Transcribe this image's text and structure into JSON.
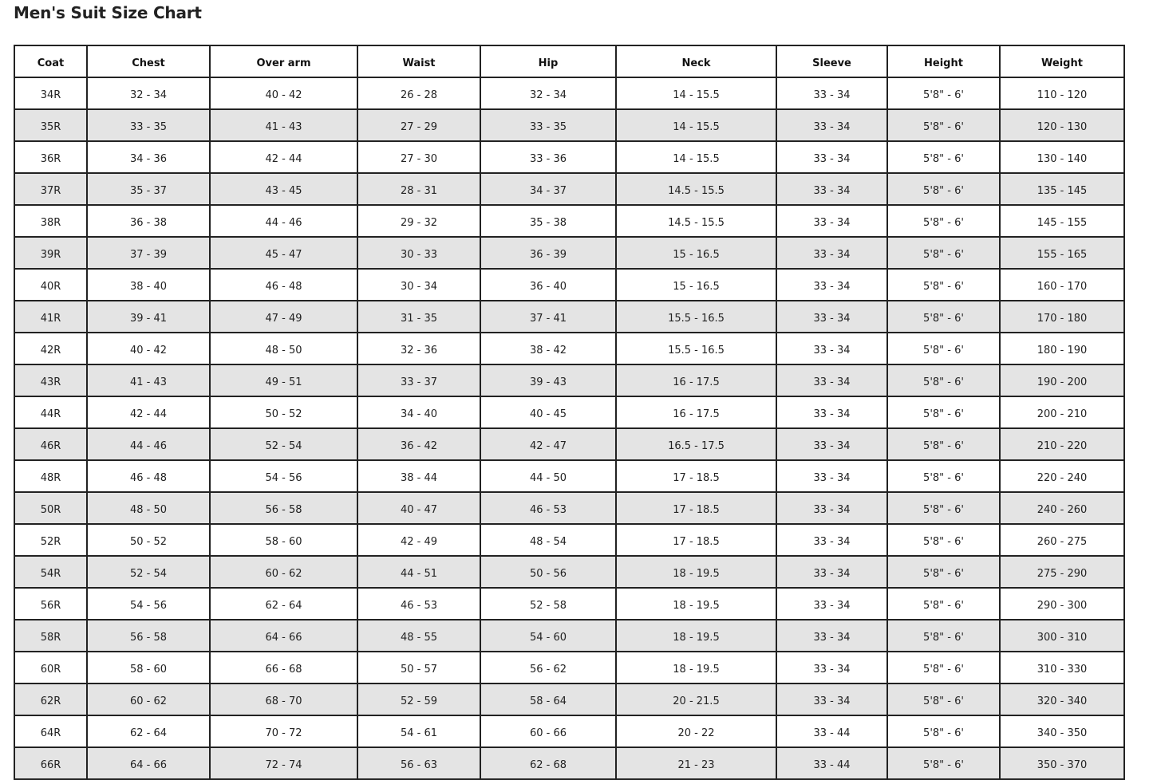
{
  "title": "Men's Suit Size Chart",
  "table": {
    "headers": [
      "Coat",
      "Chest",
      "Over arm",
      "Waist",
      "Hip",
      "Neck",
      "Sleeve",
      "Height",
      "Weight"
    ],
    "rows": [
      [
        "34R",
        "32 - 34",
        "40 - 42",
        "26 - 28",
        "32 - 34",
        "14 - 15.5",
        "33 - 34",
        "5'8\" - 6'",
        "110 - 120"
      ],
      [
        "35R",
        "33 - 35",
        "41 - 43",
        "27 - 29",
        "33 - 35",
        "14 - 15.5",
        "33 - 34",
        "5'8\" - 6'",
        "120 - 130"
      ],
      [
        "36R",
        "34 - 36",
        "42 - 44",
        "27 - 30",
        "33 - 36",
        "14 - 15.5",
        "33 - 34",
        "5'8\" - 6'",
        "130 - 140"
      ],
      [
        "37R",
        "35 - 37",
        "43 - 45",
        "28 - 31",
        "34 - 37",
        "14.5 - 15.5",
        "33 - 34",
        "5'8\" - 6'",
        "135 - 145"
      ],
      [
        "38R",
        "36 - 38",
        "44 - 46",
        "29 - 32",
        "35 - 38",
        "14.5 - 15.5",
        "33 - 34",
        "5'8\" - 6'",
        "145 - 155"
      ],
      [
        "39R",
        "37 - 39",
        "45 - 47",
        "30 - 33",
        "36 - 39",
        "15 - 16.5",
        "33 - 34",
        "5'8\" - 6'",
        "155 - 165"
      ],
      [
        "40R",
        "38 - 40",
        "46 - 48",
        "30 - 34",
        "36 - 40",
        "15 - 16.5",
        "33 - 34",
        "5'8\" - 6'",
        "160 - 170"
      ],
      [
        "41R",
        "39 - 41",
        "47 - 49",
        "31 - 35",
        "37 - 41",
        "15.5 - 16.5",
        "33 - 34",
        "5'8\" - 6'",
        "170 - 180"
      ],
      [
        "42R",
        "40 - 42",
        "48 - 50",
        "32 - 36",
        "38 - 42",
        "15.5 - 16.5",
        "33 - 34",
        "5'8\" - 6'",
        "180 - 190"
      ],
      [
        "43R",
        "41 - 43",
        "49 - 51",
        "33 - 37",
        "39 - 43",
        "16 - 17.5",
        "33 - 34",
        "5'8\" - 6'",
        "190 - 200"
      ],
      [
        "44R",
        "42 - 44",
        "50 - 52",
        "34 - 40",
        "40 - 45",
        "16 - 17.5",
        "33 - 34",
        "5'8\" - 6'",
        "200 - 210"
      ],
      [
        "46R",
        "44 - 46",
        "52 - 54",
        "36 - 42",
        "42 - 47",
        "16.5 - 17.5",
        "33 - 34",
        "5'8\" - 6'",
        "210 - 220"
      ],
      [
        "48R",
        "46 - 48",
        "54 - 56",
        "38 - 44",
        "44 - 50",
        "17 - 18.5",
        "33 - 34",
        "5'8\" - 6'",
        "220 - 240"
      ],
      [
        "50R",
        "48 - 50",
        "56 - 58",
        "40 - 47",
        "46 - 53",
        "17 - 18.5",
        "33 - 34",
        "5'8\" - 6'",
        "240 - 260"
      ],
      [
        "52R",
        "50 - 52",
        "58 - 60",
        "42 - 49",
        "48 - 54",
        "17 - 18.5",
        "33 - 34",
        "5'8\" - 6'",
        "260 - 275"
      ],
      [
        "54R",
        "52 - 54",
        "60 - 62",
        "44 - 51",
        "50 - 56",
        "18 - 19.5",
        "33 - 34",
        "5'8\" - 6'",
        "275 - 290"
      ],
      [
        "56R",
        "54 - 56",
        "62 - 64",
        "46 - 53",
        "52 - 58",
        "18 - 19.5",
        "33 - 34",
        "5'8\" - 6'",
        "290 - 300"
      ],
      [
        "58R",
        "56 - 58",
        "64 - 66",
        "48 - 55",
        "54 - 60",
        "18 - 19.5",
        "33 - 34",
        "5'8\" - 6'",
        "300 - 310"
      ],
      [
        "60R",
        "58 - 60",
        "66 - 68",
        "50 - 57",
        "56 - 62",
        "18 - 19.5",
        "33 - 34",
        "5'8\" - 6'",
        "310 - 330"
      ],
      [
        "62R",
        "60 - 62",
        "68 - 70",
        "52 - 59",
        "58 - 64",
        "20 - 21.5",
        "33 - 34",
        "5'8\" - 6'",
        "320 - 340"
      ],
      [
        "64R",
        "62 - 64",
        "70 - 72",
        "54 - 61",
        "60 - 66",
        "20 - 22",
        "33 - 44",
        "5'8\" - 6'",
        "340 - 350"
      ],
      [
        "66R",
        "64 - 66",
        "72 - 74",
        "56 - 63",
        "62 - 68",
        "21 - 23",
        "33 - 44",
        "5'8\" - 6'",
        "350 - 370"
      ]
    ]
  },
  "colors": {
    "stripe": "#e4e4e4",
    "border": "#222222"
  }
}
